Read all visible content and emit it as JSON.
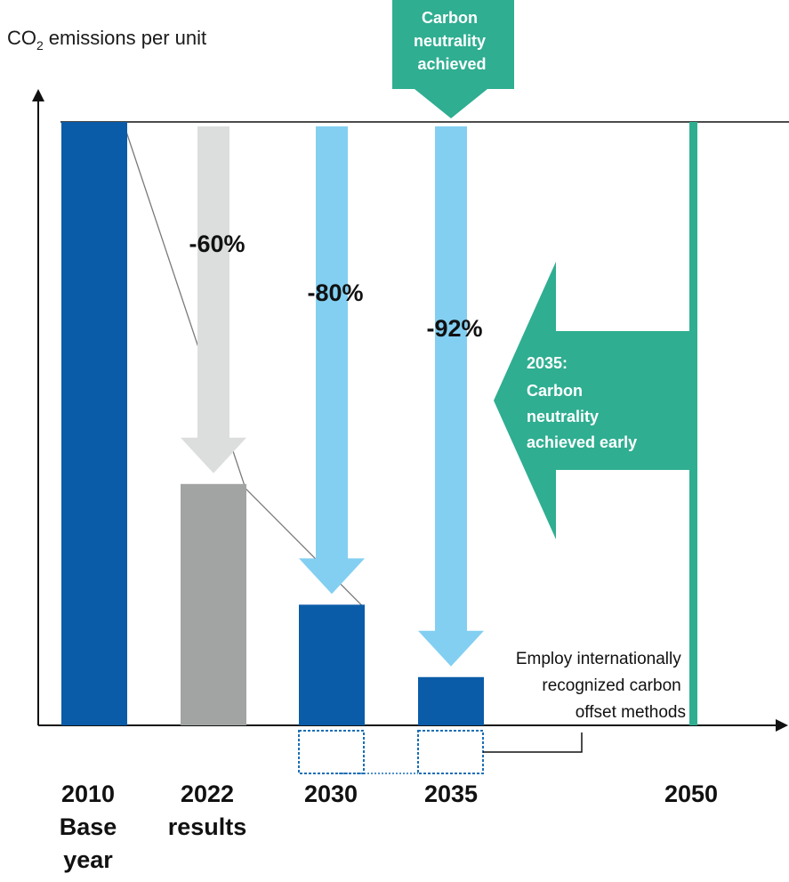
{
  "chart_data": {
    "type": "bar",
    "ylabel": "emissions per unit",
    "ylabel_prefix": "CO",
    "ylabel_subscript": "2",
    "categories": [
      {
        "lines": [
          "2010",
          "Base",
          "year"
        ],
        "value": 100,
        "color": "#0a5ca8"
      },
      {
        "lines": [
          "2022",
          "results"
        ],
        "value": 40,
        "color": "#a2a4a4"
      },
      {
        "lines": [
          "2030"
        ],
        "value": 20,
        "color": "#0a5ca8"
      },
      {
        "lines": [
          "2035"
        ],
        "value": 8,
        "color": "#0a5ca8"
      },
      {
        "lines": [
          "2050"
        ],
        "value": null,
        "color": "#2fae91"
      }
    ],
    "reductions": [
      {
        "category_index": 1,
        "label": "-60%",
        "color": "#dcdede"
      },
      {
        "category_index": 2,
        "label": "-80%",
        "color": "#83cff2"
      },
      {
        "category_index": 3,
        "label": "-92%",
        "color": "#83cff2"
      }
    ],
    "ylim": [
      0,
      100
    ],
    "top_callout": {
      "lines": [
        "Carbon",
        "neutrality",
        "achieved"
      ],
      "color": "#2fae91"
    },
    "early_callout": {
      "lines": [
        "2035:",
        "Carbon",
        "neutrality",
        "achieved early"
      ],
      "color": "#2fae91"
    },
    "offset_note": {
      "lines": [
        "Employ internationally",
        "recognized carbon",
        "offset methods"
      ]
    },
    "axis_color": "#111111",
    "connector_color": "#7a7a7a",
    "offset_box_color": "#1a6fb5"
  }
}
